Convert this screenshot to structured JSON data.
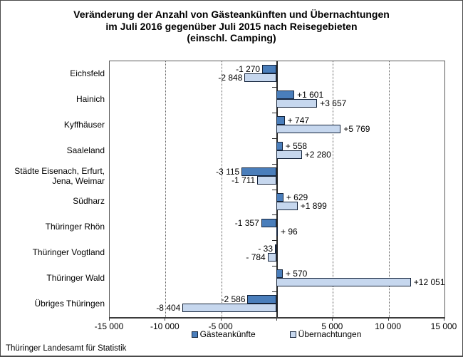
{
  "title": "Veränderung der Anzahl von Gästeankünften und Übernachtungen\nim Juli 2016 gegenüber Juli 2015 nach Reisegebieten\n(einschl. Camping)",
  "footer": "Thüringer Landesamt für Statistik",
  "chart_data": {
    "type": "bar",
    "orientation": "horizontal",
    "categories": [
      "Eichsfeld",
      "Hainich",
      "Kyffhäuser",
      "Saaleland",
      "Städte Eisenach, Erfurt,\nJena, Weimar",
      "Südharz",
      "Thüringer Rhön",
      "Thüringer Vogtland",
      "Thüringer Wald",
      "Übriges Thüringen"
    ],
    "series": [
      {
        "name": "Gästeankünfte",
        "color": "#4A7EBB",
        "border_color": "#14233a",
        "values": [
          -1270,
          1601,
          747,
          558,
          -3115,
          629,
          -1357,
          -33,
          570,
          -2586
        ],
        "labels": [
          "-1 270",
          "+1 601",
          "+ 747",
          "+ 558",
          "-3 115",
          "+ 629",
          "-1 357",
          "- 33",
          "+ 570",
          "-2 586"
        ]
      },
      {
        "name": "Übernachtungen",
        "color": "#C6D7EE",
        "border_color": "#14233a",
        "values": [
          -2848,
          3657,
          5769,
          2280,
          -1711,
          1899,
          96,
          -784,
          12051,
          -8404
        ],
        "labels": [
          "-2 848",
          "+3 657",
          "+5 769",
          "+2 280",
          "-1 711",
          "+1 899",
          "+ 96",
          "- 784",
          "+12 051",
          "-8 404"
        ]
      }
    ],
    "xlim": [
      -15000,
      15000
    ],
    "x_ticks": [
      -15000,
      -10000,
      -5000,
      0,
      5000,
      10000,
      15000
    ],
    "x_tick_labels": [
      "-15 000",
      "-10 000",
      "-5 000",
      "",
      "5 000",
      "10 000",
      "15 000"
    ],
    "gridlines": [
      -10000,
      -5000,
      5000,
      10000
    ],
    "grid_style": "dotted",
    "legend_position": "bottom",
    "xlabel": "",
    "ylabel": ""
  }
}
